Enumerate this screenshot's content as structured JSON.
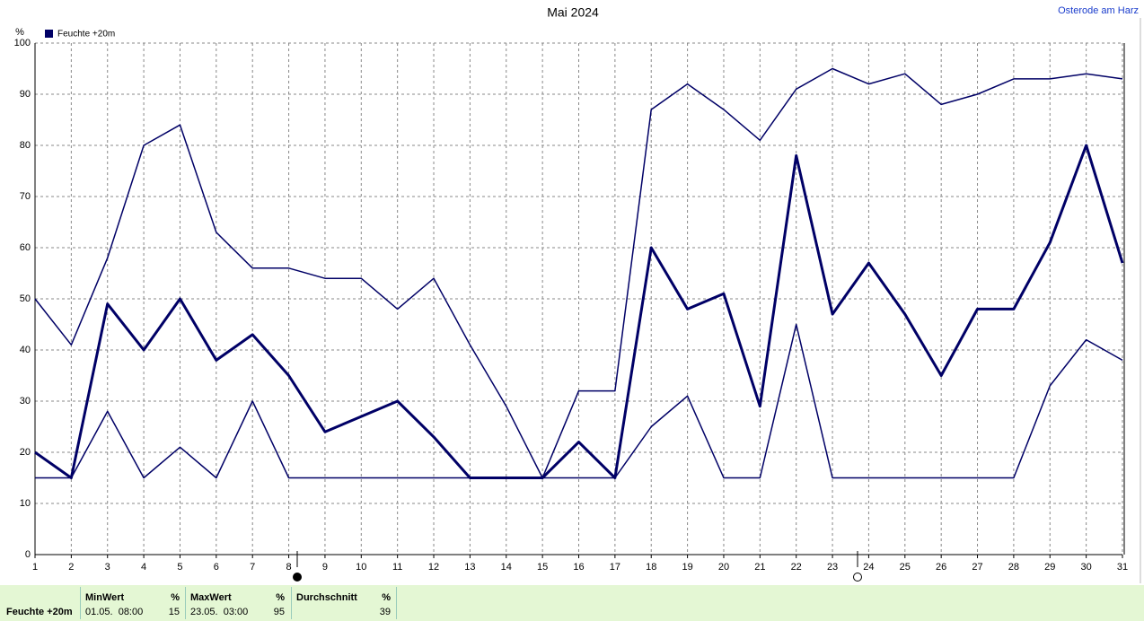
{
  "chart_data": {
    "type": "line",
    "title": "Mai 2024",
    "location": "Osterode am Harz",
    "y_unit": "%",
    "x": [
      1,
      2,
      3,
      4,
      5,
      6,
      7,
      8,
      9,
      10,
      11,
      12,
      13,
      14,
      15,
      16,
      17,
      18,
      19,
      20,
      21,
      22,
      23,
      24,
      25,
      26,
      27,
      28,
      29,
      30,
      31
    ],
    "xlim": [
      1,
      31
    ],
    "xticks": [
      1,
      2,
      3,
      4,
      5,
      6,
      7,
      8,
      9,
      10,
      11,
      12,
      13,
      14,
      15,
      16,
      17,
      18,
      19,
      20,
      21,
      22,
      23,
      24,
      25,
      26,
      27,
      28,
      29,
      30,
      31
    ],
    "ylim": [
      0,
      100
    ],
    "yticks": [
      0,
      10,
      20,
      30,
      40,
      50,
      60,
      70,
      80,
      90,
      100
    ],
    "grid": true,
    "series": [
      {
        "name": "Feuchte +20m",
        "color": "#000066",
        "values": [
          20,
          15,
          49,
          40,
          50,
          38,
          43,
          35,
          24,
          27,
          30,
          23,
          15,
          15,
          15,
          22,
          15,
          60,
          48,
          51,
          29,
          78,
          47,
          57,
          47,
          35,
          48,
          48,
          61,
          80,
          57
        ],
        "max": [
          50,
          41,
          58,
          80,
          84,
          63,
          56,
          56,
          54,
          54,
          48,
          54,
          41,
          29,
          15,
          32,
          32,
          87,
          92,
          87,
          81,
          91,
          95,
          92,
          94,
          88,
          90,
          93,
          93,
          94,
          93
        ],
        "min": [
          15,
          15,
          28,
          15,
          21,
          15,
          30,
          15,
          15,
          15,
          15,
          15,
          15,
          15,
          15,
          15,
          15,
          25,
          31,
          15,
          15,
          45,
          15,
          15,
          15,
          15,
          15,
          15,
          33,
          42,
          38
        ]
      }
    ]
  },
  "stats": {
    "row_label": "Feuchte +20m",
    "columns": [
      {
        "header": "MinWert",
        "unit": "%",
        "time": "01.05.  08:00",
        "value": 15
      },
      {
        "header": "MaxWert",
        "unit": "%",
        "time": "23.05.  03:00",
        "value": 95
      },
      {
        "header": "Durchschnitt",
        "unit": "%",
        "value": 39
      }
    ]
  }
}
